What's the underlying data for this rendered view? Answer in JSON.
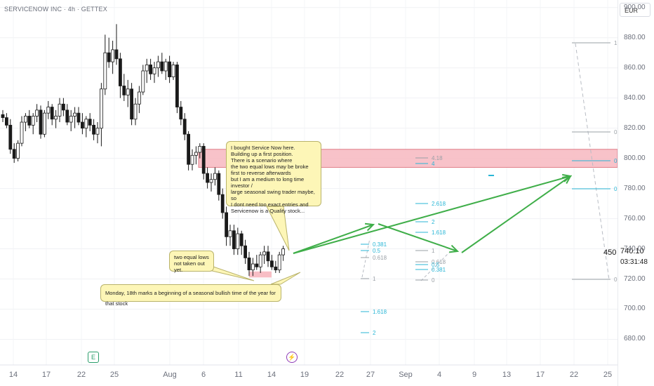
{
  "header": {
    "symbol_line": "SERVICENOW INC · 4h · GETTEX",
    "currency_button": "EUR"
  },
  "price_readout": {
    "current": "740.10",
    "countdown": "03:31:48",
    "side_label": "450"
  },
  "badges": {
    "earnings": "E",
    "dividend": "⚡"
  },
  "annotations": {
    "main_note": [
      "I bought Service Now here.",
      "Building up a first position.",
      "There is a scenario where",
      "the two equal lows may be broke",
      "first to reverse afterwards",
      "but I am a medium to long time investor /",
      "large seasonal swing trader maybe, so",
      "I dont need too exact entries and",
      "Servicenow is a Quality stock..."
    ],
    "lows_note": [
      "two equal lows",
      "not taken out yet."
    ],
    "seasonal_note": "Monday, 18th marks a beginning of a seasonal bullish time of the year for that stock"
  },
  "colors": {
    "up": "#26a69a",
    "down": "#1a1a1a",
    "candle_up_fill": "#ffffff",
    "arrow": "#3fae49",
    "zone": "#f7b7bf",
    "fib": "#29b6d6",
    "fib_gray": "#9aa0a6"
  },
  "chart_data": {
    "type": "candlestick",
    "timeframe": "4h",
    "y_axis": {
      "ticks": [
        900,
        880,
        860,
        840,
        820,
        800,
        780,
        760,
        740,
        720,
        700,
        680
      ],
      "ylim": [
        663,
        905
      ],
      "tick_labels": [
        "900.00",
        "880.00",
        "860.00",
        "840.00",
        "820.00",
        "800.00",
        "780.00",
        "760.00",
        "740.00",
        "720.00",
        "700.00",
        "680.00"
      ]
    },
    "x_axis": {
      "tick_labels": [
        "14",
        "17",
        "22",
        "25",
        "Aug",
        "6",
        "11",
        "14",
        "19",
        "22",
        "27",
        "Sep",
        "4",
        "9",
        "13",
        "17",
        "22",
        "25"
      ]
    },
    "candles": [
      {
        "o": 829,
        "h": 832,
        "l": 824,
        "c": 827
      },
      {
        "o": 827,
        "h": 830,
        "l": 820,
        "c": 822
      },
      {
        "o": 822,
        "h": 826,
        "l": 803,
        "c": 806
      },
      {
        "o": 806,
        "h": 810,
        "l": 797,
        "c": 800
      },
      {
        "o": 800,
        "h": 812,
        "l": 798,
        "c": 810
      },
      {
        "o": 810,
        "h": 828,
        "l": 808,
        "c": 824
      },
      {
        "o": 824,
        "h": 830,
        "l": 818,
        "c": 828
      },
      {
        "o": 828,
        "h": 832,
        "l": 820,
        "c": 822
      },
      {
        "o": 822,
        "h": 830,
        "l": 816,
        "c": 828
      },
      {
        "o": 828,
        "h": 836,
        "l": 824,
        "c": 832
      },
      {
        "o": 832,
        "h": 835,
        "l": 813,
        "c": 816
      },
      {
        "o": 816,
        "h": 832,
        "l": 814,
        "c": 830
      },
      {
        "o": 830,
        "h": 838,
        "l": 826,
        "c": 834
      },
      {
        "o": 834,
        "h": 836,
        "l": 822,
        "c": 826
      },
      {
        "o": 826,
        "h": 832,
        "l": 820,
        "c": 828
      },
      {
        "o": 828,
        "h": 840,
        "l": 824,
        "c": 836
      },
      {
        "o": 836,
        "h": 840,
        "l": 828,
        "c": 832
      },
      {
        "o": 832,
        "h": 836,
        "l": 822,
        "c": 824
      },
      {
        "o": 824,
        "h": 832,
        "l": 818,
        "c": 828
      },
      {
        "o": 828,
        "h": 834,
        "l": 820,
        "c": 830
      },
      {
        "o": 830,
        "h": 834,
        "l": 822,
        "c": 824
      },
      {
        "o": 824,
        "h": 830,
        "l": 816,
        "c": 820
      },
      {
        "o": 820,
        "h": 828,
        "l": 814,
        "c": 826
      },
      {
        "o": 826,
        "h": 830,
        "l": 818,
        "c": 822
      },
      {
        "o": 822,
        "h": 826,
        "l": 812,
        "c": 816
      },
      {
        "o": 816,
        "h": 824,
        "l": 810,
        "c": 820
      },
      {
        "o": 820,
        "h": 850,
        "l": 808,
        "c": 846
      },
      {
        "o": 846,
        "h": 882,
        "l": 842,
        "c": 870
      },
      {
        "o": 870,
        "h": 880,
        "l": 860,
        "c": 864
      },
      {
        "o": 864,
        "h": 878,
        "l": 856,
        "c": 872
      },
      {
        "o": 872,
        "h": 889,
        "l": 862,
        "c": 866
      },
      {
        "o": 866,
        "h": 870,
        "l": 840,
        "c": 848
      },
      {
        "o": 848,
        "h": 856,
        "l": 838,
        "c": 842
      },
      {
        "o": 842,
        "h": 852,
        "l": 834,
        "c": 846
      },
      {
        "o": 846,
        "h": 850,
        "l": 822,
        "c": 826
      },
      {
        "o": 826,
        "h": 840,
        "l": 822,
        "c": 836
      },
      {
        "o": 836,
        "h": 848,
        "l": 830,
        "c": 844
      },
      {
        "o": 844,
        "h": 862,
        "l": 842,
        "c": 858
      },
      {
        "o": 858,
        "h": 866,
        "l": 850,
        "c": 862
      },
      {
        "o": 862,
        "h": 866,
        "l": 852,
        "c": 856
      },
      {
        "o": 856,
        "h": 864,
        "l": 850,
        "c": 860
      },
      {
        "o": 860,
        "h": 868,
        "l": 854,
        "c": 864
      },
      {
        "o": 864,
        "h": 870,
        "l": 856,
        "c": 858
      },
      {
        "o": 858,
        "h": 866,
        "l": 852,
        "c": 864
      },
      {
        "o": 864,
        "h": 868,
        "l": 850,
        "c": 854
      },
      {
        "o": 854,
        "h": 864,
        "l": 852,
        "c": 862
      },
      {
        "o": 862,
        "h": 864,
        "l": 830,
        "c": 834
      },
      {
        "o": 834,
        "h": 838,
        "l": 822,
        "c": 826
      },
      {
        "o": 826,
        "h": 830,
        "l": 812,
        "c": 816
      },
      {
        "o": 816,
        "h": 818,
        "l": 792,
        "c": 796
      },
      {
        "o": 796,
        "h": 806,
        "l": 792,
        "c": 802
      },
      {
        "o": 802,
        "h": 808,
        "l": 796,
        "c": 804
      },
      {
        "o": 804,
        "h": 810,
        "l": 800,
        "c": 808
      },
      {
        "o": 808,
        "h": 810,
        "l": 786,
        "c": 790
      },
      {
        "o": 790,
        "h": 794,
        "l": 780,
        "c": 784
      },
      {
        "o": 784,
        "h": 790,
        "l": 778,
        "c": 786
      },
      {
        "o": 786,
        "h": 794,
        "l": 782,
        "c": 790
      },
      {
        "o": 790,
        "h": 792,
        "l": 772,
        "c": 776
      },
      {
        "o": 776,
        "h": 780,
        "l": 760,
        "c": 764
      },
      {
        "o": 764,
        "h": 768,
        "l": 742,
        "c": 748
      },
      {
        "o": 748,
        "h": 756,
        "l": 742,
        "c": 752
      },
      {
        "o": 752,
        "h": 756,
        "l": 736,
        "c": 740
      },
      {
        "o": 740,
        "h": 754,
        "l": 736,
        "c": 750
      },
      {
        "o": 750,
        "h": 752,
        "l": 736,
        "c": 742
      },
      {
        "o": 742,
        "h": 746,
        "l": 730,
        "c": 734
      },
      {
        "o": 734,
        "h": 738,
        "l": 722,
        "c": 726
      },
      {
        "o": 726,
        "h": 734,
        "l": 722,
        "c": 730
      },
      {
        "o": 730,
        "h": 736,
        "l": 726,
        "c": 728
      },
      {
        "o": 728,
        "h": 738,
        "l": 724,
        "c": 736
      },
      {
        "o": 736,
        "h": 742,
        "l": 730,
        "c": 738
      },
      {
        "o": 738,
        "h": 742,
        "l": 728,
        "c": 732
      },
      {
        "o": 732,
        "h": 736,
        "l": 726,
        "c": 728
      },
      {
        "o": 728,
        "h": 732,
        "l": 724,
        "c": 726
      },
      {
        "o": 726,
        "h": 738,
        "l": 724,
        "c": 736
      },
      {
        "o": 736,
        "h": 742,
        "l": 732,
        "c": 740
      }
    ],
    "zones": [
      {
        "type": "resistance_zone",
        "from_price": 794,
        "to_price": 806
      },
      {
        "type": "equal_lows_marker",
        "from_price": 721,
        "to_price": 725
      }
    ],
    "fib_levels_left": [
      "0.381",
      "0.5",
      "0.618",
      "1",
      "1.618",
      "2"
    ],
    "fib_levels_mid": [
      "2.618",
      "2",
      "1.618",
      "1",
      "0.618",
      "0.5",
      "0.381",
      "0",
      "4.18",
      "4"
    ],
    "fib_levels_right": [
      "1",
      "0.",
      "0.",
      "0.",
      "0"
    ],
    "projection_path": [
      {
        "x_label": "16",
        "price": 740
      },
      {
        "x_label": "27",
        "price": 760
      },
      {
        "x_label": "Sep",
        "price": 760
      },
      {
        "x_label": "6",
        "price": 740
      },
      {
        "x_label": "22",
        "price": 796
      }
    ],
    "current_price": 740.1
  }
}
